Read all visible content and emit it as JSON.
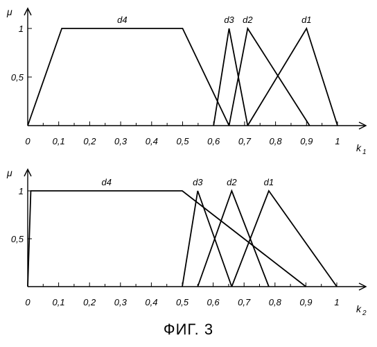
{
  "caption": "ФИГ. 3",
  "chart_data": [
    {
      "type": "line",
      "ylabel": "μ",
      "xlabel": "k",
      "xlabel_sub": "1",
      "xlim": [
        0,
        1
      ],
      "ylim": [
        0,
        1
      ],
      "x_ticks": [
        0,
        0.1,
        0.2,
        0.3,
        0.4,
        0.5,
        0.6,
        0.7,
        0.8,
        0.9,
        1
      ],
      "x_tick_labels": [
        "0",
        "0,1",
        "0,2",
        "0,3",
        "0,4",
        "0,5",
        "0,6",
        "0,7",
        "0,8",
        "0,9",
        "1"
      ],
      "y_ticks": [
        0.5,
        1
      ],
      "y_tick_labels": [
        "0,5",
        "1"
      ],
      "series": [
        {
          "name": "d4",
          "x": [
            0,
            0.11,
            0.5,
            0.65
          ],
          "y": [
            0,
            1,
            1,
            0
          ]
        },
        {
          "name": "d3",
          "x": [
            0.6,
            0.65,
            0.71
          ],
          "y": [
            0,
            1,
            0
          ]
        },
        {
          "name": "d2",
          "x": [
            0.65,
            0.71,
            0.91
          ],
          "y": [
            0,
            1,
            0
          ]
        },
        {
          "name": "d1",
          "x": [
            0.71,
            0.9,
            1.0
          ],
          "y": [
            0,
            1,
            0
          ]
        }
      ]
    },
    {
      "type": "line",
      "ylabel": "μ",
      "xlabel": "k",
      "xlabel_sub": "2",
      "xlim": [
        0,
        1
      ],
      "ylim": [
        0,
        1
      ],
      "x_ticks": [
        0,
        0.1,
        0.2,
        0.3,
        0.4,
        0.5,
        0.6,
        0.7,
        0.8,
        0.9,
        1
      ],
      "x_tick_labels": [
        "0",
        "0,1",
        "0,2",
        "0,3",
        "0,4",
        "0,5",
        "0,6",
        "0,7",
        "0,8",
        "0,9",
        "1"
      ],
      "y_ticks": [
        0.5,
        1
      ],
      "y_tick_labels": [
        "0,5",
        "1"
      ],
      "series": [
        {
          "name": "d4",
          "x": [
            0,
            0.01,
            0.5,
            0.9
          ],
          "y": [
            0,
            1,
            1,
            0
          ]
        },
        {
          "name": "d3",
          "x": [
            0.5,
            0.55,
            0.66
          ],
          "y": [
            0,
            1,
            0
          ]
        },
        {
          "name": "d2",
          "x": [
            0.55,
            0.66,
            0.78
          ],
          "y": [
            0,
            1,
            0
          ]
        },
        {
          "name": "d1",
          "x": [
            0.66,
            0.78,
            1.0
          ],
          "y": [
            0,
            1,
            0
          ]
        }
      ]
    }
  ]
}
